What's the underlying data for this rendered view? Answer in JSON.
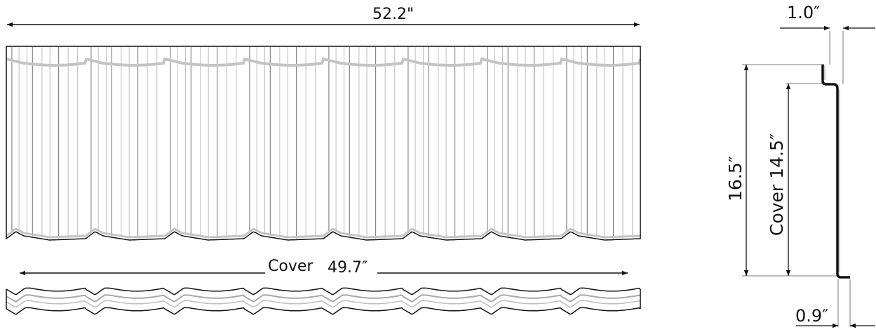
{
  "dimensions": {
    "overall_width": "52.2\"",
    "cover_width_word": "Cover",
    "cover_width_value": "49.7″",
    "step_depth": "1.0″",
    "overall_length": "16.5″",
    "cover_length": "Cover 14.5″",
    "lip": "0.9″"
  },
  "colors": {
    "line": "#111111",
    "rib": "#8c8c8c",
    "highlight": "#bdbdbd"
  }
}
